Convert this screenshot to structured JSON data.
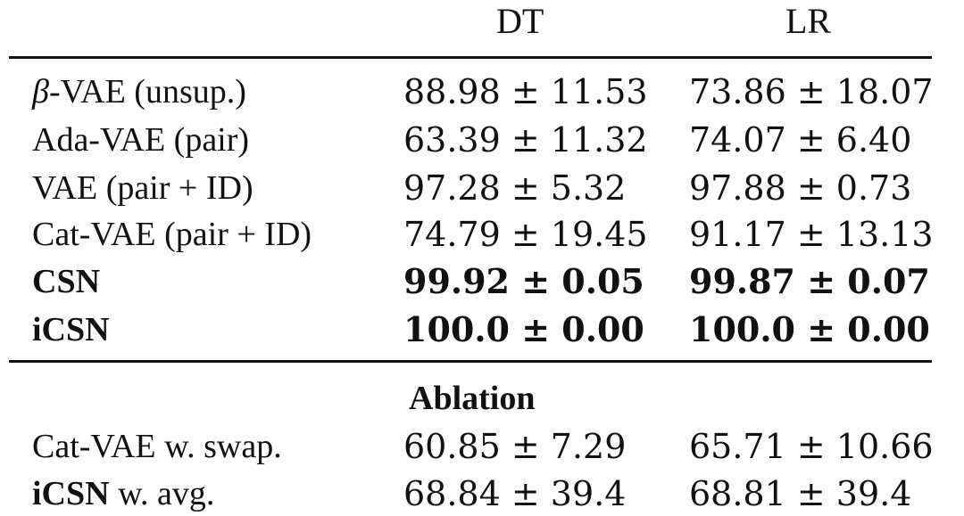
{
  "table": {
    "headers": [
      "DT",
      "LR"
    ],
    "main_rows": [
      {
        "method": "β-VAE (unsup.)",
        "dt": "88.98 ± 11.53",
        "lr": "73.86 ± 18.07"
      },
      {
        "method": "Ada-VAE (pair)",
        "dt": "63.39 ± 11.32",
        "lr": "74.07 ± 6.40"
      },
      {
        "method": "VAE (pair + ID)",
        "dt": "97.28 ± 5.32",
        "lr": "97.88 ± 0.73"
      },
      {
        "method": "Cat-VAE (pair + ID)",
        "dt": "74.79 ± 19.45",
        "lr": "91.17 ± 13.13"
      },
      {
        "method": "CSN",
        "dt": "99.92 ± 0.05",
        "lr": "99.87 ± 0.07"
      },
      {
        "method": "iCSN",
        "dt": "100.0 ± 0.00",
        "lr": "100.0 ± 0.00"
      }
    ],
    "ablation_title": "Ablation",
    "ablation_rows": [
      {
        "method_prefix": "Cat-VAE",
        "method_suffix": " w. swap.",
        "dt": "60.85 ± 7.29",
        "lr": "65.71 ± 10.66"
      },
      {
        "method_prefix": "iCSN",
        "method_suffix": " w. avg.",
        "dt": "68.84 ± 39.4",
        "lr": "68.81 ± 39.4"
      }
    ]
  }
}
